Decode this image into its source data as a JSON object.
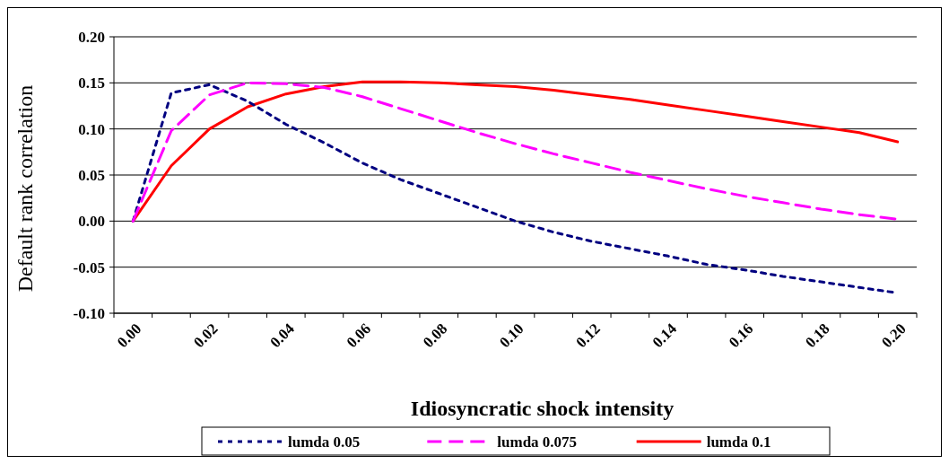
{
  "chart_data": {
    "type": "line",
    "xlabel": "Idiosyncratic shock intensity",
    "ylabel": "Default rank correlation",
    "categories": [
      "0.00",
      null,
      "0.02",
      null,
      "0.04",
      null,
      "0.06",
      null,
      "0.08",
      null,
      "0.10",
      null,
      "0.12",
      null,
      "0.14",
      null,
      "0.16",
      null,
      "0.18",
      null,
      "0.20"
    ],
    "ylim": [
      -0.1,
      0.2
    ],
    "yticks": [
      {
        "value": -0.1,
        "label": "-0.10"
      },
      {
        "value": -0.05,
        "label": "-0.05"
      },
      {
        "value": 0,
        "label": "0.00"
      },
      {
        "value": 0.05,
        "label": "0.05"
      },
      {
        "value": 0.1,
        "label": "0.10"
      },
      {
        "value": 0.15,
        "label": "0.15"
      },
      {
        "value": 0.2,
        "label": "0.20"
      }
    ],
    "grid": "y",
    "legend": "bottom",
    "marker": "none",
    "series": [
      {
        "name": "lumda 0.05",
        "color": "#000080",
        "line_style": "dotted",
        "values": [
          0,
          0.139,
          0.148,
          0.13,
          0.105,
          0.085,
          0.063,
          0.045,
          0.03,
          0.015,
          0.0,
          -0.012,
          -0.022,
          -0.03,
          -0.038,
          -0.047,
          -0.053,
          -0.06,
          -0.066,
          -0.072,
          -0.078
        ]
      },
      {
        "name": "lumda 0.075",
        "color": "#ff00ff",
        "line_style": "dashed",
        "values": [
          0,
          0.098,
          0.137,
          0.15,
          0.149,
          0.145,
          0.135,
          0.122,
          0.109,
          0.096,
          0.084,
          0.073,
          0.063,
          0.053,
          0.044,
          0.035,
          0.027,
          0.02,
          0.013,
          0.007,
          0.002
        ]
      },
      {
        "name": "lumda 0.1",
        "color": "#ff0000",
        "line_style": "solid",
        "values": [
          0,
          0.06,
          0.1,
          0.124,
          0.138,
          0.146,
          0.151,
          0.151,
          0.15,
          0.148,
          0.146,
          0.142,
          0.137,
          0.132,
          0.126,
          0.12,
          0.114,
          0.108,
          0.102,
          0.096,
          0.086
        ]
      }
    ]
  }
}
